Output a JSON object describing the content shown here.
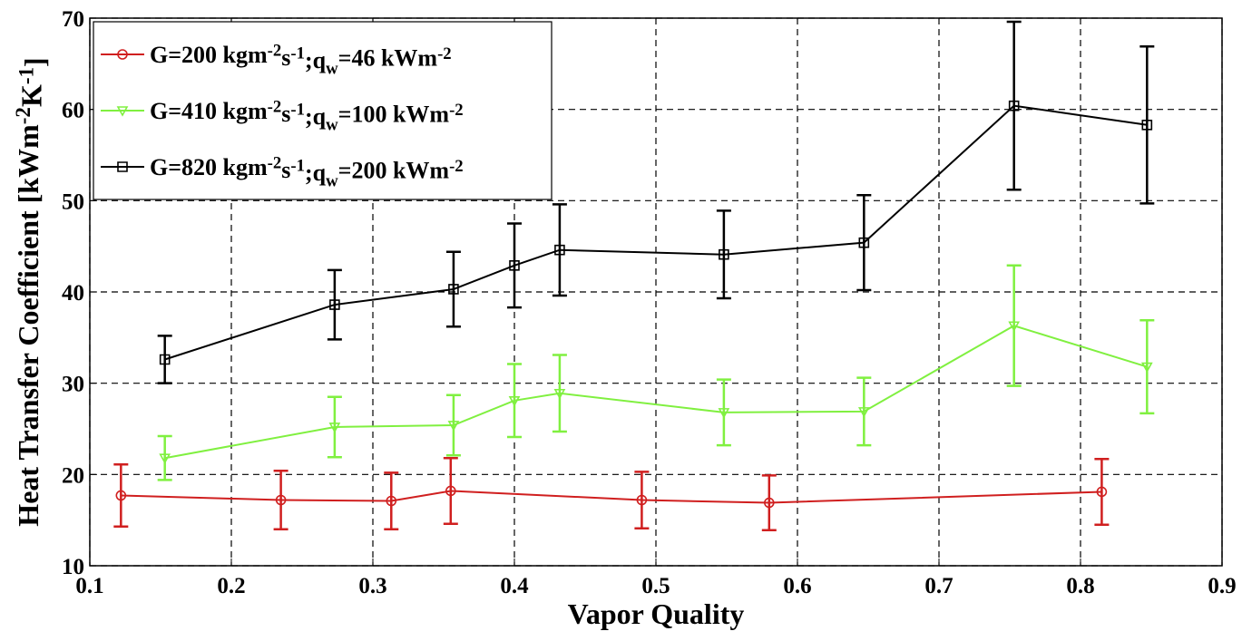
{
  "chart_data": {
    "type": "line",
    "xlabel": "Vapor Quality",
    "ylabel": "Heat Transfer Coefficient [kWm-2K-1]",
    "xlim": [
      0.1,
      0.9
    ],
    "xticks": [
      0.1,
      0.2,
      0.3,
      0.4,
      0.5,
      0.6,
      0.7,
      0.8,
      0.9
    ],
    "ylim": [
      10,
      70
    ],
    "yticks": [
      10,
      20,
      30,
      40,
      50,
      60,
      70
    ],
    "grid": true,
    "legend": "upper left",
    "series": [
      {
        "name": "G=200 kgm-2s-1;qw=46 kWm-2",
        "color": "#d01f1f",
        "marker": "circle",
        "x": [
          0.122,
          0.235,
          0.313,
          0.355,
          0.49,
          0.58,
          0.815
        ],
        "values": [
          17.7,
          17.2,
          17.1,
          18.2,
          17.2,
          16.9,
          18.1
        ],
        "errors": [
          3.4,
          3.2,
          3.1,
          3.6,
          3.1,
          3.0,
          3.6
        ]
      },
      {
        "name": "G=410 kgm-2s-1;qw=100 kWm-2",
        "color": "#80f040",
        "marker": "triangle-down",
        "x": [
          0.153,
          0.273,
          0.357,
          0.4,
          0.432,
          0.548,
          0.647,
          0.753,
          0.847
        ],
        "values": [
          21.8,
          25.2,
          25.4,
          28.1,
          28.9,
          26.8,
          26.9,
          36.3,
          31.8
        ],
        "errors": [
          2.4,
          3.3,
          3.3,
          4.0,
          4.2,
          3.6,
          3.7,
          6.6,
          5.1
        ]
      },
      {
        "name": "G=820 kgm-2s-1;qw=200 kWm-2",
        "color": "#000000",
        "marker": "square",
        "x": [
          0.153,
          0.273,
          0.357,
          0.4,
          0.432,
          0.548,
          0.647,
          0.753,
          0.847
        ],
        "values": [
          32.6,
          38.6,
          40.3,
          42.9,
          44.6,
          44.1,
          45.4,
          60.4,
          58.3
        ],
        "errors": [
          2.6,
          3.8,
          4.1,
          4.6,
          5.0,
          4.8,
          5.2,
          9.2,
          8.6
        ]
      }
    ]
  }
}
